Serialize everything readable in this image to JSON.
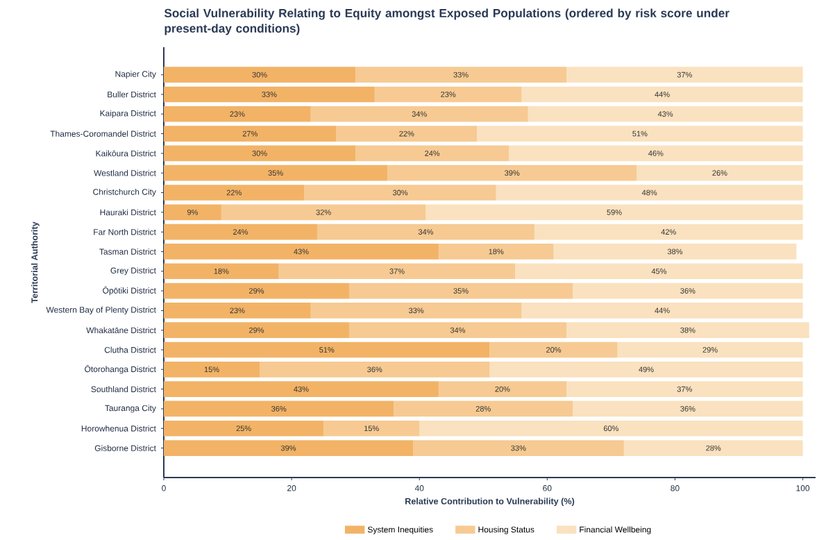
{
  "chart_data": {
    "type": "bar",
    "orientation": "horizontal",
    "stacked": true,
    "title": "Social Vulnerability Relating to Equity amongst Exposed Populations (ordered by risk score under present-day conditions)",
    "xlabel": "Relative Contribution to Vulnerability (%)",
    "ylabel": "Territorial Authority",
    "categories": [
      "Napier City",
      "Buller District",
      "Kaipara District",
      "Thames-Coromandel District",
      "Kaikōura District",
      "Westland District",
      "Christchurch City",
      "Hauraki District",
      "Far North District",
      "Tasman District",
      "Grey District",
      "Ōpōtiki District",
      "Western Bay of Plenty District",
      "Whakatāne District",
      "Clutha District",
      "Ōtorohanga District",
      "Southland District",
      "Tauranga City",
      "Horowhenua District",
      "Gisborne District"
    ],
    "series": [
      {
        "name": "System Inequities",
        "color": "#f2b366",
        "values": [
          30,
          33,
          23,
          27,
          30,
          35,
          22,
          9,
          24,
          43,
          18,
          29,
          23,
          29,
          51,
          15,
          43,
          36,
          25,
          39
        ],
        "value_labels": [
          "30%",
          "33%",
          "23%",
          "27%",
          "30%",
          "35%",
          "22%",
          "9%",
          "24%",
          "43%",
          "18%",
          "29%",
          "23%",
          "29%",
          "51%",
          "15%",
          "43%",
          "36%",
          "25%",
          "39%"
        ]
      },
      {
        "name": "Housing Status",
        "color": "#f6ca92",
        "values": [
          33,
          23,
          34,
          22,
          24,
          39,
          30,
          32,
          34,
          18,
          37,
          35,
          33,
          34,
          20,
          36,
          20,
          28,
          15,
          33
        ],
        "value_labels": [
          "33%",
          "23%",
          "34%",
          "22%",
          "24%",
          "39%",
          "30%",
          "32%",
          "34%",
          "18%",
          "37%",
          "35%",
          "33%",
          "34%",
          "20%",
          "36%",
          "20%",
          "28%",
          "15%",
          "33%"
        ]
      },
      {
        "name": "Financial Wellbeing",
        "color": "#fae1bf",
        "values": [
          37,
          44,
          43,
          51,
          46,
          26,
          48,
          59,
          42,
          38,
          45,
          36,
          44,
          38,
          29,
          49,
          37,
          36,
          60,
          28
        ],
        "value_labels": [
          "37%",
          "44%",
          "43%",
          "51%",
          "46%",
          "26%",
          "48%",
          "59%",
          "42%",
          "38%",
          "45%",
          "36%",
          "44%",
          "38%",
          "29%",
          "49%",
          "37%",
          "36%",
          "60%",
          "28%"
        ]
      }
    ],
    "xlim": [
      0,
      102
    ],
    "xticks": [
      0,
      20,
      40,
      60,
      80,
      100
    ],
    "legend": "bottom"
  }
}
